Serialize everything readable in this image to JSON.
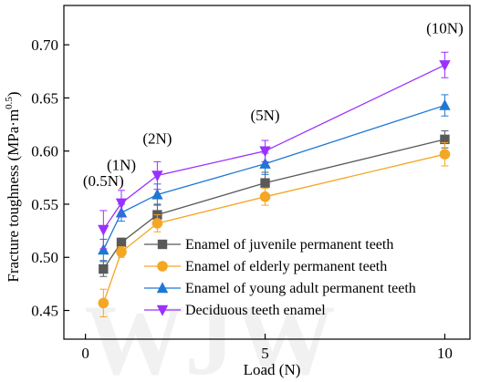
{
  "chart_data": {
    "type": "line",
    "xlabel": "Load (N)",
    "ylabel": "Fracture toughness (MPa·m",
    "ylabel_exponent": "0.5",
    "ylabel_close": ")",
    "xlim": [
      -0.6,
      10.7
    ],
    "ylim": [
      0.423,
      0.737
    ],
    "x_ticks": [
      0,
      5,
      10
    ],
    "y_ticks": [
      0.45,
      0.5,
      0.55,
      0.6,
      0.65,
      0.7
    ],
    "x_tick_labels": [
      "0",
      "5",
      "10"
    ],
    "y_tick_labels": [
      "0.45",
      "0.50",
      "0.55",
      "0.60",
      "0.65",
      "0.70"
    ],
    "x": [
      0.5,
      1,
      2,
      5,
      10
    ],
    "annotations": [
      {
        "text": "(0.5N)",
        "x": 0.5,
        "y": 0.567
      },
      {
        "text": "(1N)",
        "x": 1.0,
        "y": 0.582
      },
      {
        "text": "(2N)",
        "x": 2.0,
        "y": 0.607
      },
      {
        "text": "(5N)",
        "x": 5.0,
        "y": 0.629
      },
      {
        "text": "(10N)",
        "x": 10.0,
        "y": 0.711
      }
    ],
    "watermark": "WJW",
    "legend_position": "lower-right",
    "series": [
      {
        "name": "Enamel of juvenile permanent teeth",
        "color": "#595959",
        "marker": "square",
        "values": [
          0.489,
          0.514,
          0.54,
          0.57,
          0.611
        ],
        "errors": [
          0.007,
          0.004,
          0.01,
          0.01,
          0.008
        ]
      },
      {
        "name": "Enamel of elderly permanent teeth",
        "color": "#f5a623",
        "marker": "circle",
        "values": [
          0.457,
          0.505,
          0.532,
          0.557,
          0.597
        ],
        "errors": [
          0.013,
          0.005,
          0.008,
          0.008,
          0.011
        ]
      },
      {
        "name": "Enamel of young adult permanent teeth",
        "color": "#1f77d4",
        "marker": "triangle-up",
        "values": [
          0.507,
          0.542,
          0.559,
          0.588,
          0.643
        ],
        "errors": [
          0.01,
          0.008,
          0.01,
          0.01,
          0.01
        ]
      },
      {
        "name": "Deciduous teeth enamel",
        "color": "#9b30ff",
        "marker": "triangle-down",
        "values": [
          0.526,
          0.551,
          0.577,
          0.6,
          0.681
        ],
        "errors": [
          0.018,
          0.012,
          0.013,
          0.01,
          0.012
        ]
      }
    ]
  }
}
